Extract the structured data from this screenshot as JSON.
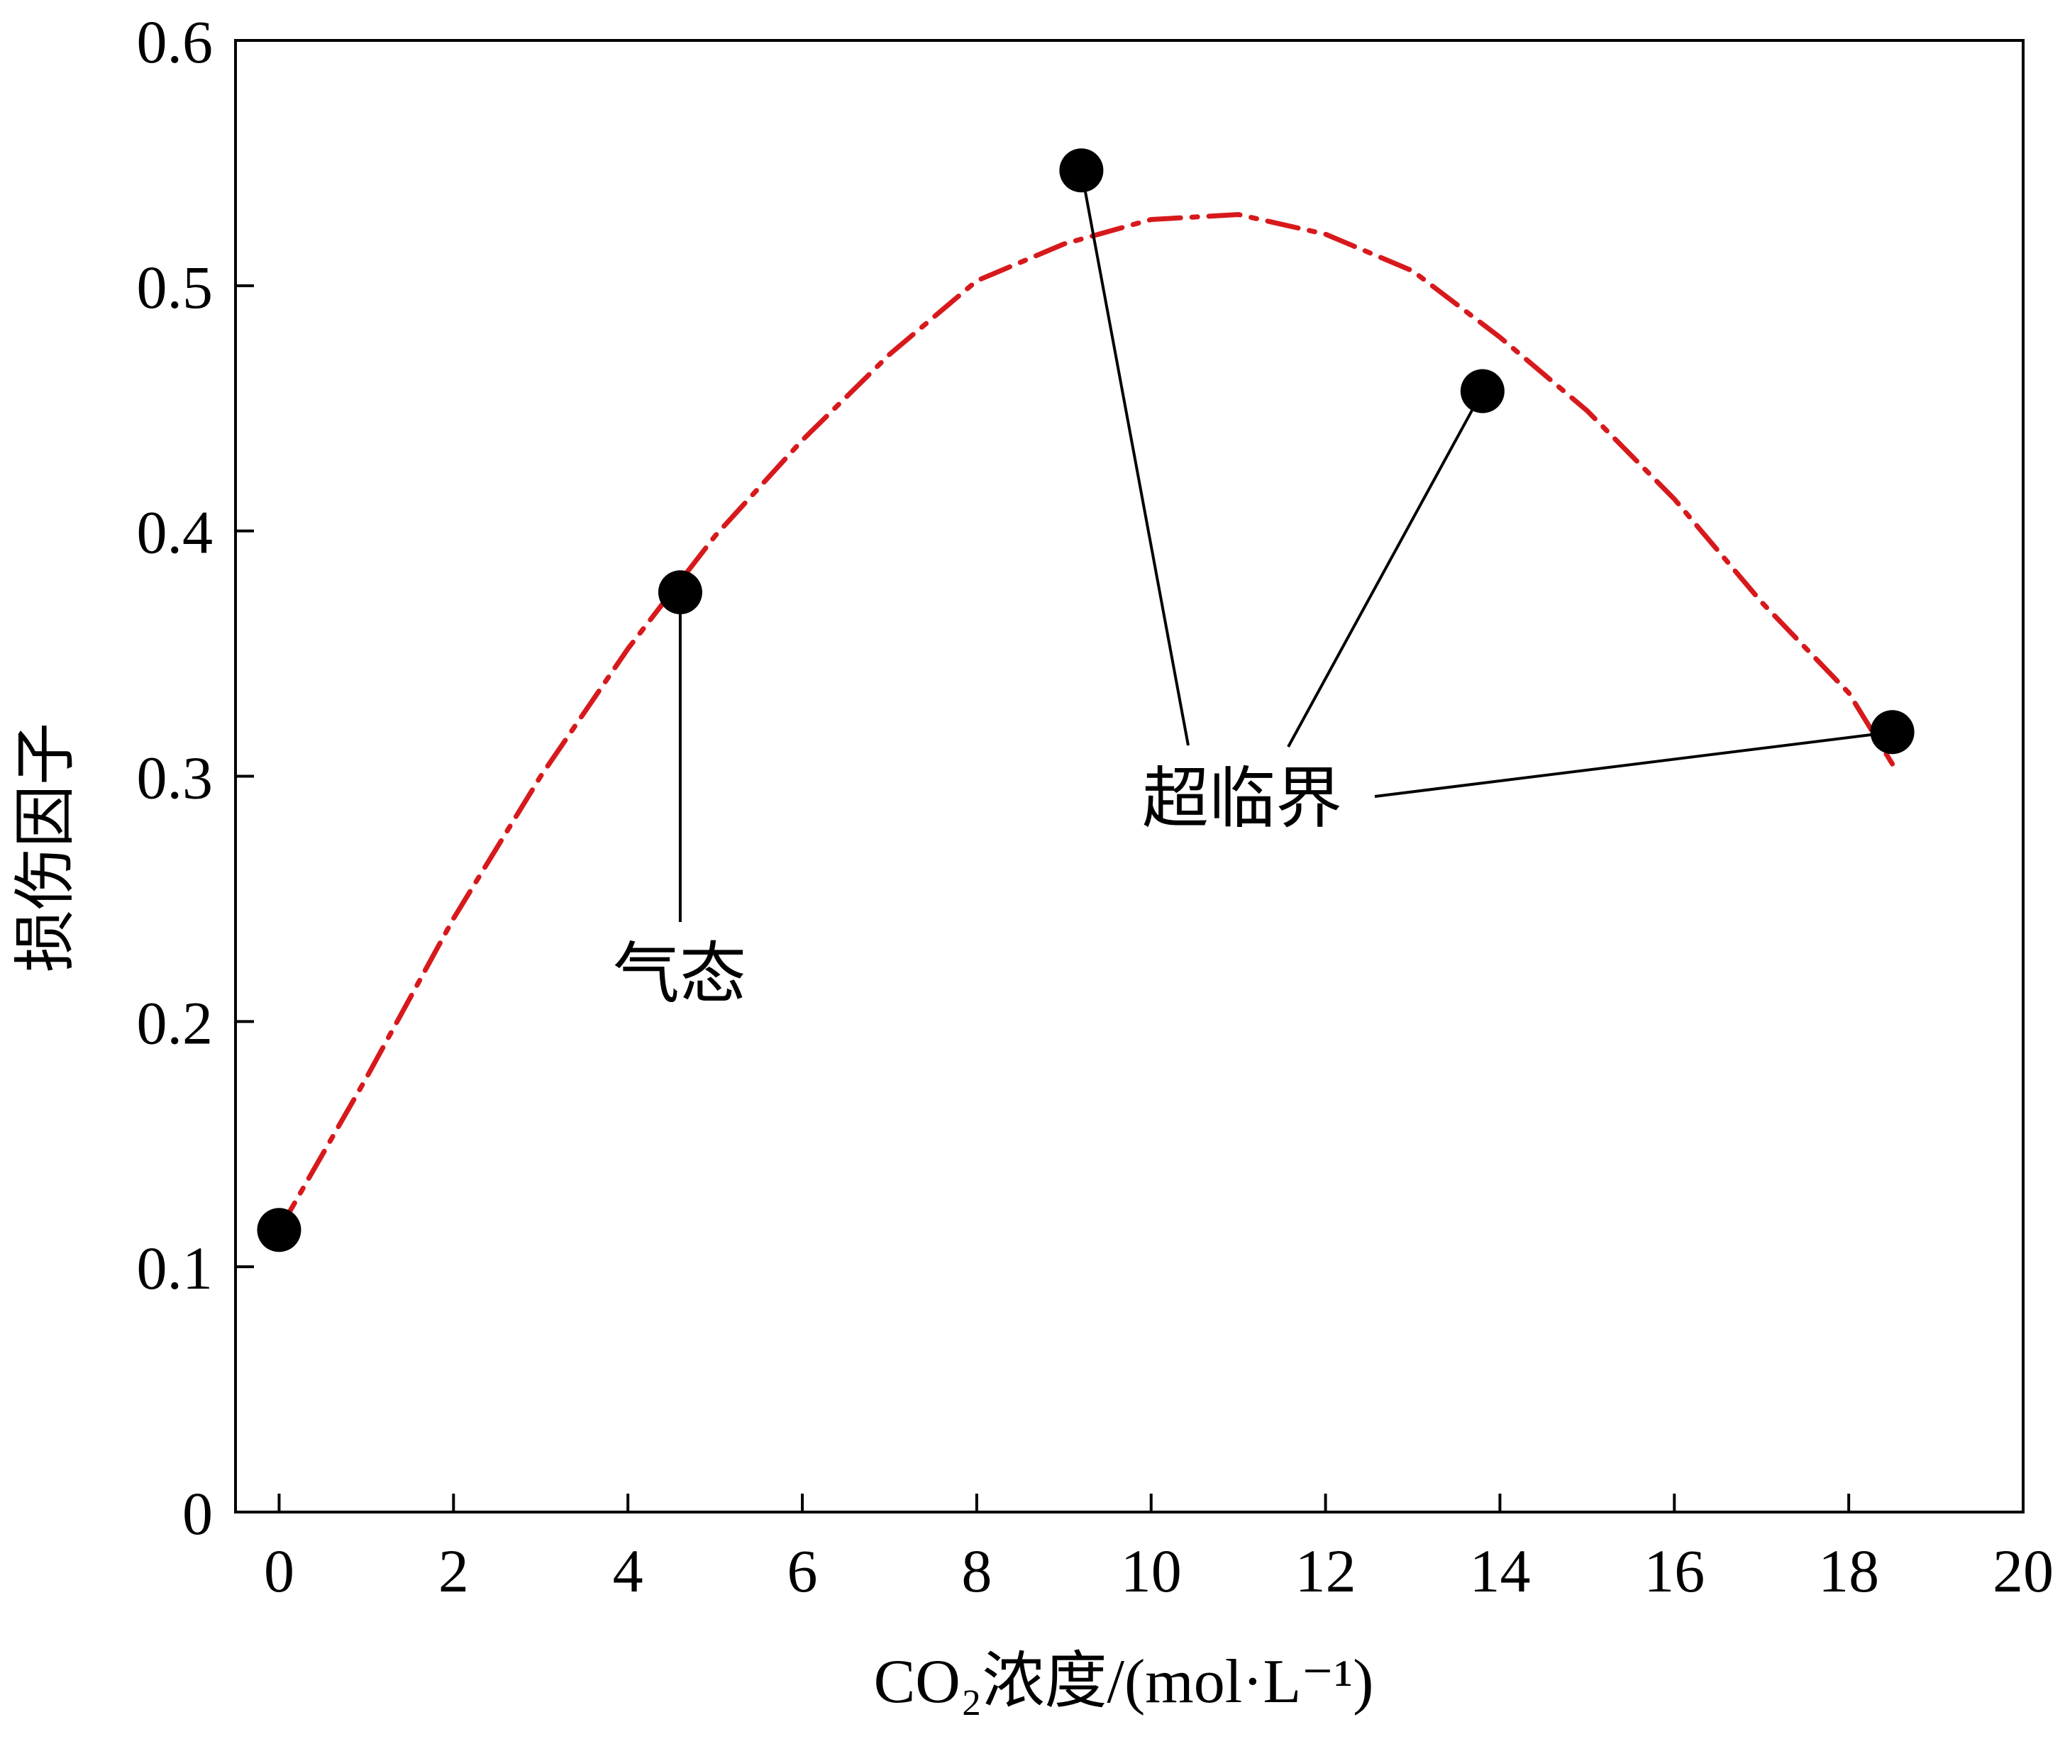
{
  "chart_data": {
    "type": "scatter",
    "title": "",
    "xlabel": "CO₂浓度/(mol·L⁻¹)",
    "ylabel": "损伤因子",
    "xlim": [
      -0.5,
      20
    ],
    "ylim": [
      0,
      0.6
    ],
    "xticks": [
      0,
      2,
      4,
      6,
      8,
      10,
      12,
      14,
      16,
      18,
      20
    ],
    "yticks": [
      0,
      0.1,
      0.2,
      0.3,
      0.4,
      0.5,
      0.6
    ],
    "xtick_labels": [
      "0",
      "2",
      "4",
      "6",
      "8",
      "10",
      "12",
      "14",
      "16",
      "18",
      "20"
    ],
    "ytick_labels": [
      "0",
      "0.1",
      "0.2",
      "0.3",
      "0.4",
      "0.5",
      "0.6"
    ],
    "grid": false,
    "legend": "none",
    "points": [
      {
        "x": 0.0,
        "y": 0.115
      },
      {
        "x": 4.6,
        "y": 0.375
      },
      {
        "x": 9.2,
        "y": 0.547
      },
      {
        "x": 13.8,
        "y": 0.457
      },
      {
        "x": 18.5,
        "y": 0.318
      }
    ],
    "fit_curve": {
      "style": "dash-dot",
      "color": "#d7191c",
      "points": [
        {
          "x": 0.0,
          "y": 0.115
        },
        {
          "x": 1.0,
          "y": 0.177
        },
        {
          "x": 2.0,
          "y": 0.242
        },
        {
          "x": 3.0,
          "y": 0.3
        },
        {
          "x": 4.0,
          "y": 0.352
        },
        {
          "x": 5.0,
          "y": 0.398
        },
        {
          "x": 6.0,
          "y": 0.437
        },
        {
          "x": 7.0,
          "y": 0.472
        },
        {
          "x": 8.0,
          "y": 0.502
        },
        {
          "x": 9.0,
          "y": 0.517
        },
        {
          "x": 10.0,
          "y": 0.527
        },
        {
          "x": 11.0,
          "y": 0.529
        },
        {
          "x": 12.0,
          "y": 0.521
        },
        {
          "x": 13.0,
          "y": 0.506
        },
        {
          "x": 14.0,
          "y": 0.479
        },
        {
          "x": 15.0,
          "y": 0.449
        },
        {
          "x": 16.0,
          "y": 0.413
        },
        {
          "x": 17.0,
          "y": 0.371
        },
        {
          "x": 18.0,
          "y": 0.334
        },
        {
          "x": 18.5,
          "y": 0.305
        }
      ]
    },
    "annotations": [
      {
        "text": "气态",
        "targets": [
          1
        ]
      },
      {
        "text": "超临界",
        "targets": [
          2,
          3,
          4
        ]
      }
    ]
  },
  "colors": {
    "axis": "#000000",
    "marker": "#000000",
    "curve": "#d7191c",
    "leader": "#000000"
  }
}
